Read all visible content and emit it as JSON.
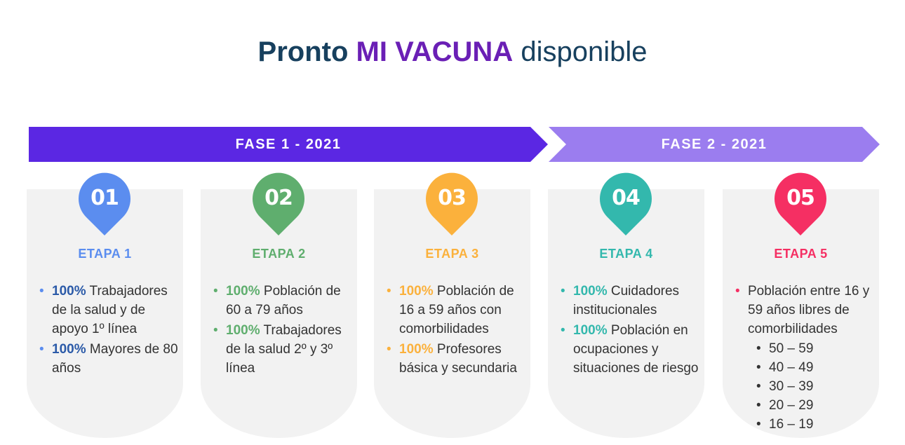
{
  "title": {
    "part1": "Pronto",
    "accent": "MI VACUNA",
    "part2": "disponible"
  },
  "phases": [
    {
      "label": "FASE 1 - 2021",
      "color": "#5b27e3"
    },
    {
      "label": "FASE 2 - 2021",
      "color": "#9b7def"
    }
  ],
  "stages": [
    {
      "num": "01",
      "label": "ETAPA 1",
      "color": "#5b8def",
      "pct_color": "#2b5aa8",
      "items": [
        {
          "pct": "100%",
          "text": "Trabajadores de la salud y de apoyo 1º línea"
        },
        {
          "pct": "100%",
          "text": "Mayores de 80 años"
        }
      ]
    },
    {
      "num": "02",
      "label": "ETAPA 2",
      "color": "#5fae6e",
      "pct_color": "#5fae6e",
      "items": [
        {
          "pct": "100%",
          "text": "Población de 60 a 79 años"
        },
        {
          "pct": "100%",
          "text": "Trabajadores de la salud 2º y 3º línea"
        }
      ]
    },
    {
      "num": "03",
      "label": "ETAPA 3",
      "color": "#fbb13c",
      "pct_color": "#fbb13c",
      "items": [
        {
          "pct": "100%",
          "text": "Población de 16 a 59 años con comorbilidades"
        },
        {
          "pct": "100%",
          "text": "Profesores básica y secundaria"
        }
      ]
    },
    {
      "num": "04",
      "label": "ETAPA 4",
      "color": "#33b8ad",
      "pct_color": "#33b8ad",
      "items": [
        {
          "pct": "100%",
          "text": "Cuidadores institucionales"
        },
        {
          "pct": "100%",
          "text": "Población en ocupaciones y situaciones de riesgo"
        }
      ]
    },
    {
      "num": "05",
      "label": "ETAPA 5",
      "color": "#f52f63",
      "pct_color": "#f52f63",
      "items": [
        {
          "pct": "",
          "text": "Población entre 16 y 59 años libres de comorbilidades"
        }
      ],
      "subitems": [
        "50 – 59",
        "40 – 49",
        "30 – 39",
        "20 – 29",
        "16 – 19"
      ]
    }
  ]
}
